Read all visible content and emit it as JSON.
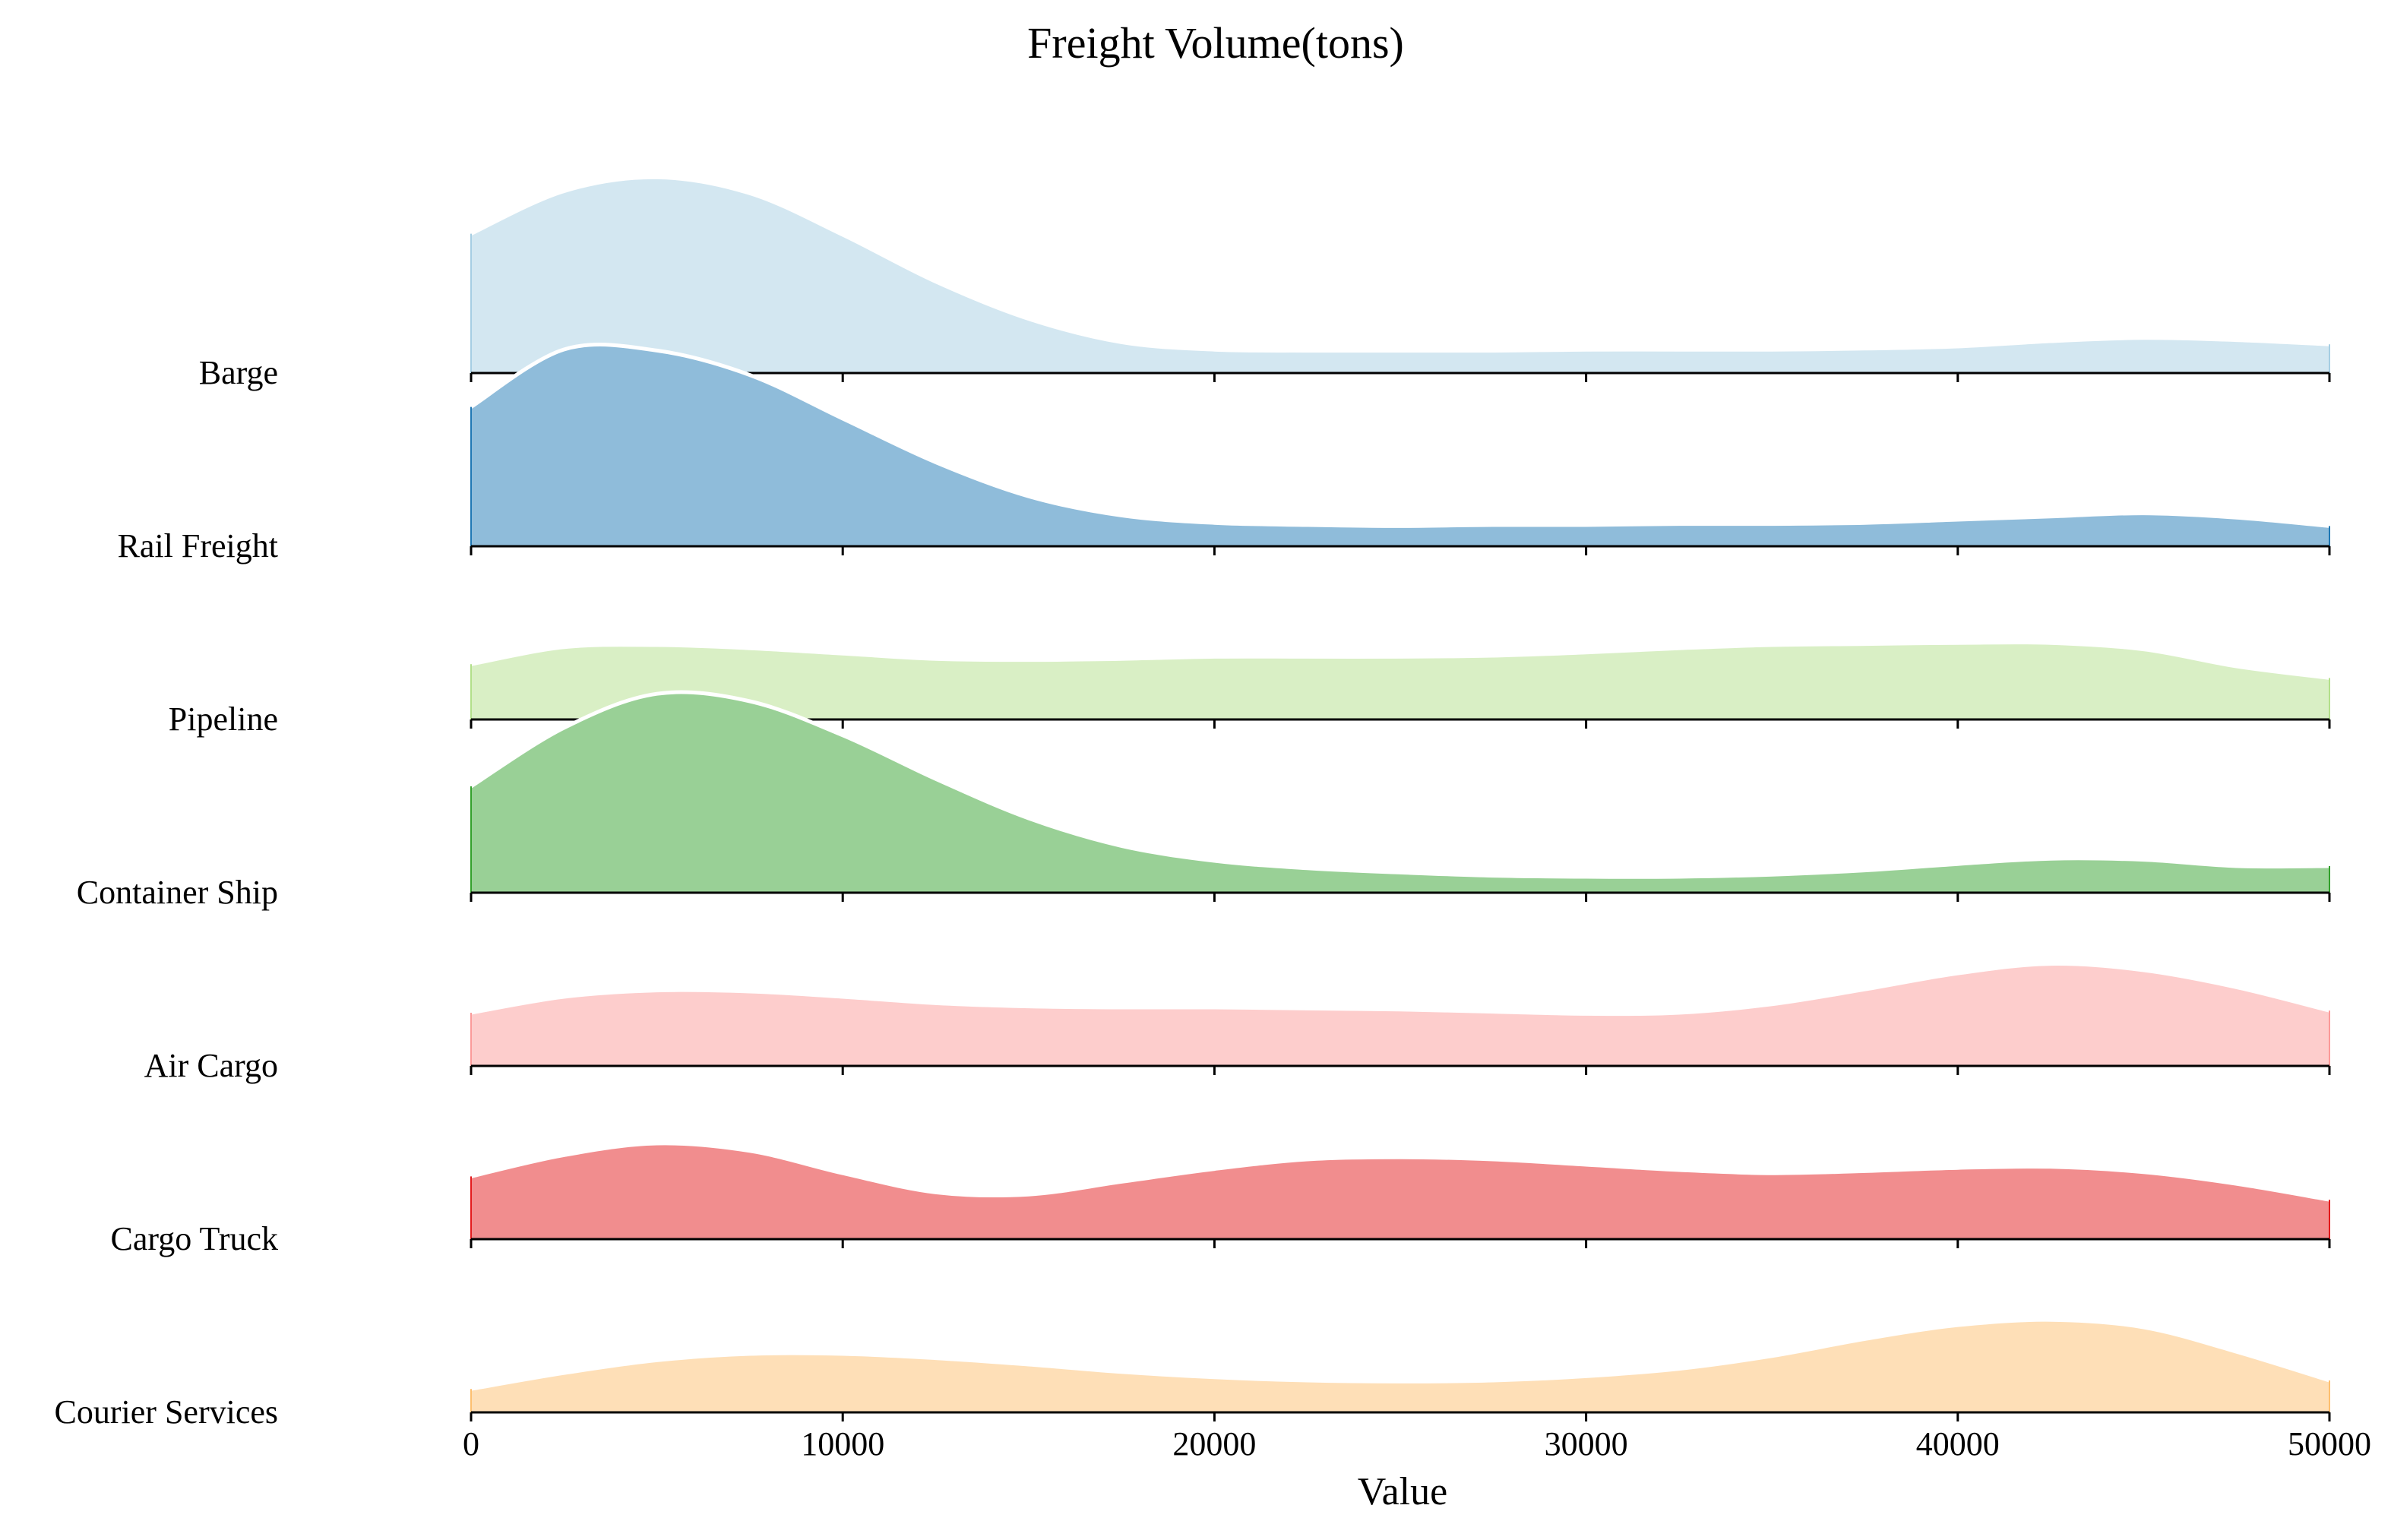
{
  "chart_data": {
    "type": "area",
    "subtype": "ridgeline",
    "title": "Freight Volume(tons)",
    "xlabel": "Value",
    "ylabel": "",
    "xlim": [
      0,
      50000
    ],
    "xticks": [
      0,
      10000,
      20000,
      30000,
      40000,
      50000
    ],
    "grid": false,
    "x": [
      0,
      2500,
      5000,
      7500,
      10000,
      12500,
      15000,
      17500,
      20000,
      22500,
      25000,
      27500,
      30000,
      32500,
      35000,
      37500,
      40000,
      42500,
      45000,
      47500,
      50000
    ],
    "series": [
      {
        "name": "Courier Services",
        "color": "#fdbf6f",
        "values": [
          0.22,
          0.37,
          0.49,
          0.55,
          0.55,
          0.51,
          0.45,
          0.38,
          0.33,
          0.3,
          0.29,
          0.3,
          0.34,
          0.41,
          0.53,
          0.69,
          0.82,
          0.87,
          0.8,
          0.57,
          0.3
        ]
      },
      {
        "name": "Cargo Truck",
        "color": "#e31a1c",
        "values": [
          0.59,
          0.79,
          0.9,
          0.83,
          0.62,
          0.44,
          0.42,
          0.54,
          0.66,
          0.75,
          0.77,
          0.75,
          0.7,
          0.65,
          0.62,
          0.64,
          0.67,
          0.68,
          0.63,
          0.52,
          0.37
        ]
      },
      {
        "name": "Air Cargo",
        "color": "#fb9a99",
        "values": [
          0.5,
          0.65,
          0.71,
          0.7,
          0.65,
          0.59,
          0.56,
          0.55,
          0.55,
          0.54,
          0.53,
          0.51,
          0.49,
          0.5,
          0.58,
          0.72,
          0.87,
          0.96,
          0.9,
          0.74,
          0.52
        ]
      },
      {
        "name": "Container Ship",
        "color": "#33a02c",
        "values": [
          1.0,
          1.55,
          1.87,
          1.8,
          1.48,
          1.07,
          0.7,
          0.44,
          0.3,
          0.23,
          0.19,
          0.16,
          0.15,
          0.15,
          0.17,
          0.21,
          0.27,
          0.32,
          0.31,
          0.25,
          0.25
        ]
      },
      {
        "name": "Pipeline",
        "color": "#b2df8a",
        "values": [
          0.52,
          0.68,
          0.7,
          0.67,
          0.62,
          0.57,
          0.56,
          0.57,
          0.59,
          0.59,
          0.59,
          0.6,
          0.63,
          0.67,
          0.7,
          0.71,
          0.72,
          0.72,
          0.66,
          0.5,
          0.39
        ]
      },
      {
        "name": "Rail Freight",
        "color": "#1f78b4",
        "values": [
          1.31,
          1.85,
          1.84,
          1.61,
          1.2,
          0.79,
          0.47,
          0.29,
          0.22,
          0.2,
          0.19,
          0.2,
          0.2,
          0.21,
          0.21,
          0.22,
          0.25,
          0.28,
          0.31,
          0.27,
          0.19
        ]
      },
      {
        "name": "Barge",
        "color": "#a6cee3",
        "values": [
          1.31,
          1.71,
          1.84,
          1.69,
          1.3,
          0.86,
          0.51,
          0.29,
          0.22,
          0.21,
          0.21,
          0.21,
          0.22,
          0.22,
          0.22,
          0.23,
          0.25,
          0.3,
          0.33,
          0.31,
          0.27
        ]
      }
    ]
  }
}
